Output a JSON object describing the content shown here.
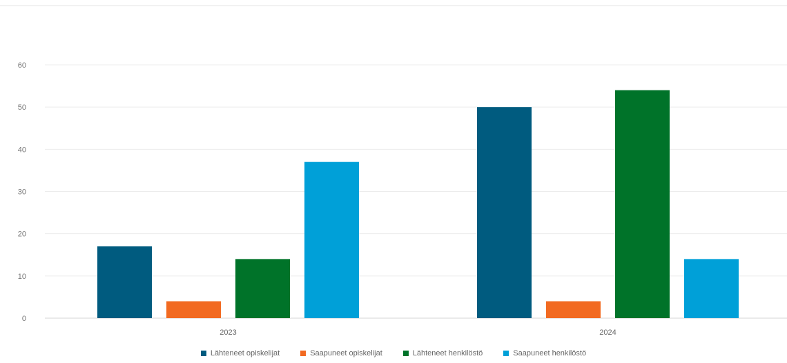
{
  "chart_data": {
    "type": "bar",
    "categories": [
      "2023",
      "2024"
    ],
    "series": [
      {
        "name": "Lähteneet opiskelijat",
        "values": [
          17,
          50
        ],
        "color": "#005b7f"
      },
      {
        "name": "Saapuneet opiskelijat",
        "values": [
          4,
          4
        ],
        "color": "#f26a21"
      },
      {
        "name": "Lähteneet henkilöstö",
        "values": [
          14,
          54
        ],
        "color": "#007329"
      },
      {
        "name": "Saapuneet henkilöstö",
        "values": [
          37,
          14
        ],
        "color": "#00a0d8"
      }
    ],
    "yticks": [
      "0",
      "10",
      "20",
      "30",
      "40",
      "50",
      "60"
    ],
    "ylim": [
      0,
      60
    ],
    "grid": true,
    "legend_position": "bottom",
    "title": "",
    "xlabel": "",
    "ylabel": ""
  }
}
